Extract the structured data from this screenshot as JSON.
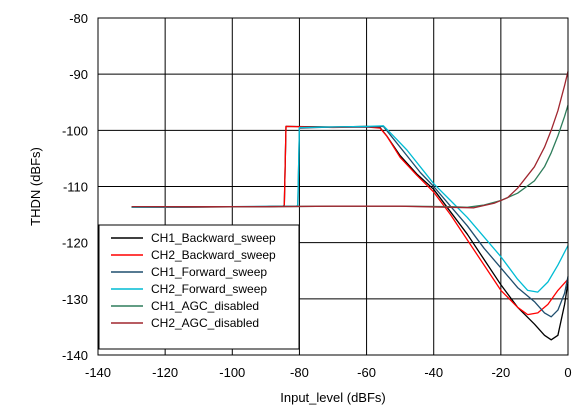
{
  "chart_data": {
    "type": "line",
    "title": "",
    "xlabel": "Input_level (dBFs)",
    "ylabel": "THDN (dBFs)",
    "xlim": [
      -140,
      0
    ],
    "ylim": [
      -140,
      -80
    ],
    "xticks": [
      -140,
      -120,
      -100,
      -80,
      -60,
      -40,
      -20,
      0
    ],
    "yticks": [
      -80,
      -90,
      -100,
      -110,
      -120,
      -130,
      -140
    ],
    "grid": true,
    "legend_position": "bottom-left",
    "series": [
      {
        "name": "CH1_Backward_sweep",
        "color": "#000000",
        "points": [
          [
            -130,
            -113.7
          ],
          [
            -90,
            -113.6
          ],
          [
            -85,
            -113.5
          ],
          [
            -84.5,
            -113.4
          ],
          [
            -84,
            -99.3
          ],
          [
            -70,
            -99.4
          ],
          [
            -60,
            -99.3
          ],
          [
            -56,
            -99.5
          ],
          [
            -54,
            -101
          ],
          [
            -50,
            -104.5
          ],
          [
            -45,
            -107.8
          ],
          [
            -40,
            -110.5
          ],
          [
            -35,
            -114.5
          ],
          [
            -30,
            -118.5
          ],
          [
            -25,
            -123
          ],
          [
            -20,
            -127.5
          ],
          [
            -15,
            -131.5
          ],
          [
            -10,
            -134.5
          ],
          [
            -7,
            -136.5
          ],
          [
            -5,
            -137.3
          ],
          [
            -3,
            -136.5
          ],
          [
            -1,
            -131
          ],
          [
            0,
            -127
          ]
        ]
      },
      {
        "name": "CH2_Backward_sweep",
        "color": "#ff0000",
        "points": [
          [
            -130,
            -113.7
          ],
          [
            -90,
            -113.6
          ],
          [
            -85,
            -113.5
          ],
          [
            -84.5,
            -113.4
          ],
          [
            -84,
            -99.3
          ],
          [
            -70,
            -99.5
          ],
          [
            -60,
            -99.4
          ],
          [
            -56,
            -99.6
          ],
          [
            -54,
            -101
          ],
          [
            -50,
            -104.8
          ],
          [
            -45,
            -108
          ],
          [
            -40,
            -111
          ],
          [
            -35,
            -115
          ],
          [
            -30,
            -119.5
          ],
          [
            -25,
            -124
          ],
          [
            -20,
            -128.5
          ],
          [
            -15,
            -131.5
          ],
          [
            -12,
            -132.8
          ],
          [
            -9,
            -132.5
          ],
          [
            -6,
            -131
          ],
          [
            -3,
            -128.5
          ],
          [
            0,
            -126.5
          ]
        ]
      },
      {
        "name": "CH1_Forward_sweep",
        "color": "#1f4e6e",
        "points": [
          [
            -130,
            -113.7
          ],
          [
            -100,
            -113.6
          ],
          [
            -81,
            -113.5
          ],
          [
            -80.5,
            -113.4
          ],
          [
            -80,
            -99.6
          ],
          [
            -70,
            -99.4
          ],
          [
            -60,
            -99.4
          ],
          [
            -55,
            -99.3
          ],
          [
            -52,
            -101.5
          ],
          [
            -48,
            -104.5
          ],
          [
            -44,
            -107.5
          ],
          [
            -40,
            -110
          ],
          [
            -35,
            -113.5
          ],
          [
            -30,
            -117
          ],
          [
            -25,
            -121
          ],
          [
            -20,
            -124.5
          ],
          [
            -15,
            -128
          ],
          [
            -10,
            -130.5
          ],
          [
            -7,
            -132.5
          ],
          [
            -5,
            -133.2
          ],
          [
            -3,
            -132
          ],
          [
            -1,
            -129
          ],
          [
            0,
            -126
          ]
        ]
      },
      {
        "name": "CH2_Forward_sweep",
        "color": "#00bcd4",
        "points": [
          [
            -130,
            -113.7
          ],
          [
            -100,
            -113.6
          ],
          [
            -81,
            -113.5
          ],
          [
            -80.5,
            -113.4
          ],
          [
            -80,
            -99.5
          ],
          [
            -70,
            -99.4
          ],
          [
            -60,
            -99.3
          ],
          [
            -55,
            -99.2
          ],
          [
            -52,
            -101
          ],
          [
            -48,
            -103.5
          ],
          [
            -44,
            -106.5
          ],
          [
            -40,
            -109.5
          ],
          [
            -35,
            -112.5
          ],
          [
            -30,
            -115.5
          ],
          [
            -25,
            -119
          ],
          [
            -20,
            -122.5
          ],
          [
            -15,
            -126.5
          ],
          [
            -12,
            -128.5
          ],
          [
            -9,
            -128.8
          ],
          [
            -6,
            -127
          ],
          [
            -3,
            -124
          ],
          [
            0,
            -120.5
          ]
        ]
      },
      {
        "name": "CH1_AGC_disabled",
        "color": "#2e7d5b",
        "points": [
          [
            -130,
            -113.6
          ],
          [
            -110,
            -113.6
          ],
          [
            -90,
            -113.6
          ],
          [
            -70,
            -113.5
          ],
          [
            -50,
            -113.5
          ],
          [
            -35,
            -113.6
          ],
          [
            -30,
            -113.7
          ],
          [
            -25,
            -113.3
          ],
          [
            -20,
            -112.5
          ],
          [
            -15,
            -111.2
          ],
          [
            -10,
            -109
          ],
          [
            -7,
            -106.5
          ],
          [
            -5,
            -104
          ],
          [
            -3,
            -101
          ],
          [
            -1,
            -97.5
          ],
          [
            0,
            -95.5
          ]
        ]
      },
      {
        "name": "CH2_AGC_disabled",
        "color": "#a0262f",
        "points": [
          [
            -130,
            -113.6
          ],
          [
            -110,
            -113.6
          ],
          [
            -90,
            -113.6
          ],
          [
            -70,
            -113.5
          ],
          [
            -50,
            -113.5
          ],
          [
            -35,
            -113.7
          ],
          [
            -28,
            -113.8
          ],
          [
            -22,
            -113
          ],
          [
            -18,
            -112
          ],
          [
            -15,
            -110.3
          ],
          [
            -10,
            -106.5
          ],
          [
            -7,
            -103
          ],
          [
            -5,
            -100
          ],
          [
            -3,
            -96.5
          ],
          [
            -1,
            -92
          ],
          [
            0,
            -89.5
          ]
        ]
      }
    ]
  }
}
